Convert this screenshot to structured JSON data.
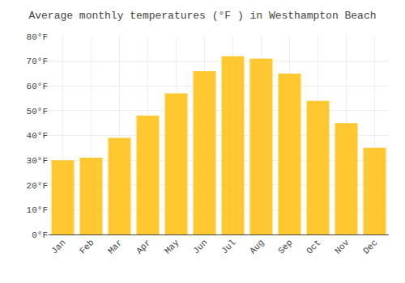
{
  "chart_data": {
    "type": "bar",
    "title": "Average monthly temperatures (°F ) in Westhampton Beach",
    "categories": [
      "Jan",
      "Feb",
      "Mar",
      "Apr",
      "May",
      "Jun",
      "Jul",
      "Aug",
      "Sep",
      "Oct",
      "Nov",
      "Dec"
    ],
    "values": [
      30,
      31,
      39,
      48,
      57,
      66,
      72,
      71,
      65,
      54,
      45,
      35
    ],
    "color": "#FFC830",
    "ylim": [
      0,
      80
    ],
    "yticks": [
      {
        "value": 0,
        "label": "0°F"
      },
      {
        "value": 10,
        "label": "10°F"
      },
      {
        "value": 20,
        "label": "20°F"
      },
      {
        "value": 30,
        "label": "30°F"
      },
      {
        "value": 40,
        "label": "40°F"
      },
      {
        "value": 50,
        "label": "50°F"
      },
      {
        "value": 60,
        "label": "60°F"
      },
      {
        "value": 70,
        "label": "70°F"
      },
      {
        "value": 80,
        "label": "80°F"
      }
    ],
    "grid": true
  }
}
